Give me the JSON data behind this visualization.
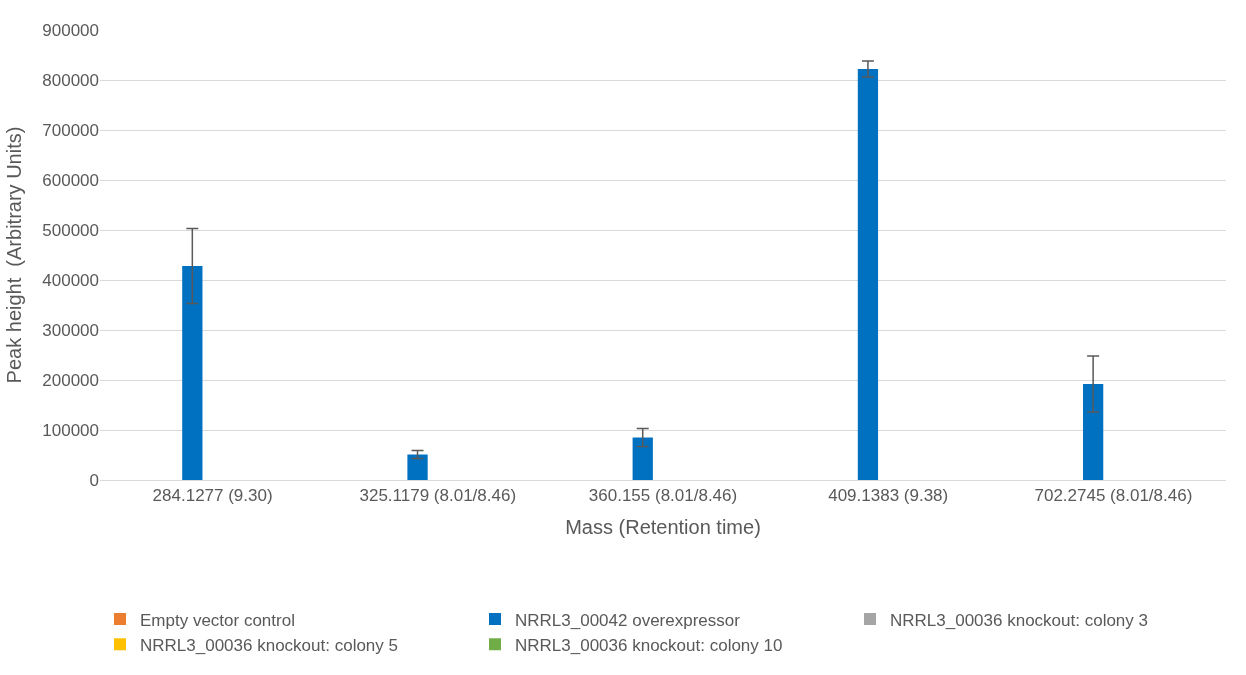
{
  "chart_data": {
    "type": "bar",
    "xlabel": "Mass (Retention time)",
    "ylabel": "Peak height  (Arbitrary Units)",
    "categories": [
      "284.1277 (9.30)",
      "325.1179 (8.01/8.46)",
      "360.155 (8.01/8.46)",
      "409.1383 (9.38)",
      "702.2745 (8.01/8.46)"
    ],
    "series": [
      {
        "name": "Empty vector control",
        "color": "#ed7d31",
        "values": [
          0,
          0,
          0,
          0,
          0
        ]
      },
      {
        "name": "NRRL3_00042 overexpressor",
        "color": "#0070c0",
        "values": [
          428000,
          51000,
          85000,
          822000,
          192000
        ],
        "errors": [
          75000,
          8000,
          18000,
          16000,
          56000
        ]
      },
      {
        "name": "NRRL3_00036 knockout: colony 3",
        "color": "#a5a5a5",
        "values": [
          0,
          0,
          0,
          0,
          0
        ]
      },
      {
        "name": "NRRL3_00036 knockout: colony 5",
        "color": "#ffc000",
        "values": [
          0,
          0,
          0,
          0,
          0
        ]
      },
      {
        "name": "NRRL3_00036 knockout: colony 10",
        "color": "#70ad47",
        "values": [
          0,
          0,
          0,
          0,
          0
        ]
      }
    ],
    "ylim": [
      0,
      900000
    ],
    "yticks": [
      0,
      100000,
      200000,
      300000,
      400000,
      500000,
      600000,
      700000,
      800000,
      900000
    ],
    "grid": "y",
    "legend": "bottom"
  }
}
